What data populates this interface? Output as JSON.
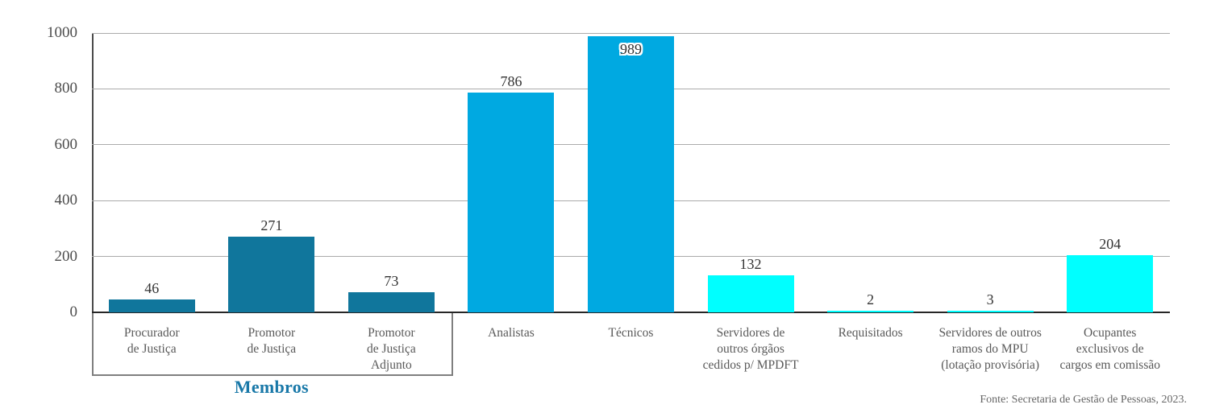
{
  "chart_data": {
    "type": "bar",
    "title": "",
    "xlabel": "",
    "ylabel": "",
    "ylim": [
      0,
      1000
    ],
    "yticks": [
      0,
      200,
      400,
      600,
      800,
      1000
    ],
    "grid": "horizontal",
    "legend": "none",
    "categories": [
      "Procurador\nde Justiça",
      "Promotor\nde Justiça",
      "Promotor\nde Justiça\nAdjunto",
      "Analistas",
      "Técnicos",
      "Servidores de\noutros órgãos\ncedidos p/ MPDFT",
      "Requisitados",
      "Servidores de outros\nramos do MPU\n(lotação provisória)",
      "Ocupantes\nexclusivos de\ncargos em comissão"
    ],
    "values": [
      46,
      271,
      73,
      786,
      989,
      132,
      2,
      3,
      204
    ],
    "bar_colors": [
      "#10769C",
      "#10769C",
      "#10769C",
      "#00A9E1",
      "#00A9E1",
      "#00FFFF",
      "#00FFFF",
      "#00FFFF",
      "#00FFFF"
    ],
    "value_label_inside": [
      false,
      false,
      false,
      false,
      true,
      false,
      false,
      false,
      false
    ],
    "group_annotation": {
      "label": "Membros",
      "from_index": 0,
      "to_index": 2,
      "color": "#1878A8"
    },
    "source": "Fonte: Secretaria de Gestão de Pessoas, 2023."
  },
  "colors": {
    "members_bars": "#10769C",
    "career_staff_bars": "#00A9E1",
    "other_staff_bars": "#00FFFF",
    "group_label": "#1878A8",
    "gridline": "#ababab",
    "axis": "#262626",
    "text": "#595959"
  }
}
